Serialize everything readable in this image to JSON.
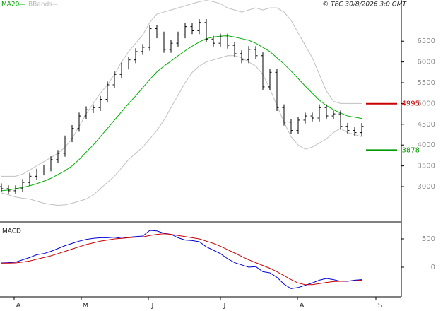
{
  "chart_data": [
    {
      "type": "ohlc",
      "note": "© TEC 30/8/2026 3:0 GMT",
      "xlim": [
        -0.2,
        56.6
      ],
      "ylim": [
        2167,
        7490
      ],
      "yticks": [
        3000,
        3500,
        4000,
        4500,
        5000,
        5500,
        6000,
        6500
      ],
      "open": [
        3000,
        2950,
        2900,
        2950,
        3100,
        3250,
        3350,
        3450,
        3650,
        3800,
        4150,
        4400,
        4700,
        4850,
        4900,
        5100,
        5450,
        5700,
        5900,
        6050,
        6250,
        6350,
        6800,
        6650,
        6300,
        6450,
        6650,
        6850,
        6750,
        6950,
        6550,
        6450,
        6600,
        6400,
        6200,
        6050,
        6300,
        6150,
        5400,
        5750,
        4900,
        4550,
        4350,
        4600,
        4700,
        4650,
        4900,
        4700,
        4750,
        4450,
        4350,
        4300
      ],
      "high": [
        3080,
        3030,
        3030,
        3180,
        3330,
        3430,
        3530,
        3730,
        3880,
        4230,
        4480,
        4780,
        4930,
        4980,
        5180,
        5530,
        5780,
        5980,
        6130,
        6330,
        6430,
        6880,
        6880,
        6730,
        6530,
        6730,
        6930,
        6930,
        7030,
        7030,
        6630,
        6680,
        6680,
        6480,
        6280,
        6380,
        6380,
        6230,
        5830,
        5830,
        4980,
        4630,
        4680,
        4780,
        4780,
        4980,
        4980,
        4830,
        4830,
        4530,
        4430,
        4530
      ],
      "low": [
        2870,
        2820,
        2820,
        2870,
        3020,
        3170,
        3270,
        3370,
        3570,
        3720,
        4070,
        4320,
        4620,
        4770,
        4820,
        5020,
        5370,
        5620,
        5820,
        5970,
        6170,
        6270,
        6570,
        6220,
        6220,
        6370,
        6570,
        6670,
        6670,
        6470,
        6370,
        6370,
        6320,
        6120,
        5970,
        5970,
        6070,
        5320,
        5320,
        4820,
        4470,
        4270,
        4270,
        4520,
        4570,
        4570,
        4620,
        4620,
        4370,
        4270,
        4220,
        4220
      ],
      "close": [
        2950,
        2900,
        2950,
        3100,
        3250,
        3350,
        3450,
        3650,
        3800,
        4150,
        4400,
        4700,
        4850,
        4900,
        5100,
        5450,
        5700,
        5900,
        6050,
        6250,
        6350,
        6800,
        6650,
        6300,
        6450,
        6650,
        6850,
        6750,
        6950,
        6550,
        6450,
        6600,
        6400,
        6200,
        6050,
        6300,
        6150,
        5400,
        5750,
        4900,
        4550,
        4350,
        4600,
        4700,
        4650,
        4900,
        4700,
        4750,
        4450,
        4350,
        4300,
        4450
      ],
      "series": [
        {
          "name": "MA20",
          "color": "#00b000",
          "values": [
            2900,
            2920,
            2950,
            2980,
            3020,
            3070,
            3130,
            3200,
            3290,
            3380,
            3500,
            3650,
            3830,
            4000,
            4200,
            4400,
            4600,
            4800,
            5000,
            5180,
            5380,
            5580,
            5760,
            5900,
            6020,
            6150,
            6270,
            6380,
            6480,
            6560,
            6600,
            6620,
            6630,
            6600,
            6560,
            6520,
            6450,
            6350,
            6250,
            6100,
            5950,
            5780,
            5600,
            5420,
            5250,
            5080,
            4950,
            4850,
            4770,
            4700,
            4670,
            4640
          ]
        },
        {
          "name": "BBands",
          "color": "#c0c0c0",
          "upper": [
            3250,
            3250,
            3250,
            3300,
            3400,
            3500,
            3600,
            3700,
            3800,
            3950,
            4150,
            4450,
            4750,
            5000,
            5250,
            5450,
            5700,
            6000,
            6250,
            6450,
            6650,
            6950,
            7150,
            7200,
            7250,
            7300,
            7350,
            7400,
            7450,
            7480,
            7450,
            7400,
            7300,
            7250,
            7200,
            7250,
            7300,
            7250,
            7300,
            7300,
            7200,
            7000,
            6700,
            6400,
            6100,
            5700,
            5300,
            5050,
            5000,
            5000,
            5000,
            5000
          ],
          "lower": [
            2850,
            2800,
            2750,
            2720,
            2700,
            2650,
            2600,
            2570,
            2550,
            2560,
            2600,
            2650,
            2700,
            2800,
            2950,
            3100,
            3250,
            3450,
            3650,
            3800,
            3950,
            4150,
            4350,
            4600,
            4900,
            5200,
            5500,
            5750,
            5900,
            6000,
            6050,
            6100,
            6150,
            6150,
            6100,
            6000,
            5900,
            5700,
            5350,
            4950,
            4550,
            4200,
            4000,
            3900,
            3950,
            4050,
            4150,
            4300,
            4400,
            4300,
            4250,
            4200
          ]
        }
      ],
      "levels": [
        {
          "value": 4995,
          "color": "#cc0000"
        },
        {
          "value": 3878,
          "color": "#009900"
        }
      ]
    },
    {
      "type": "line",
      "title": "MACD",
      "xlim": [
        -0.2,
        56.6
      ],
      "ylim": [
        -525,
        750
      ],
      "yticks": [
        0,
        500
      ],
      "xticks": [
        {
          "value": 2.4,
          "label": "A"
        },
        {
          "value": 11.9,
          "label": "M"
        },
        {
          "value": 21.4,
          "label": "J"
        },
        {
          "value": 31.6,
          "label": "J"
        },
        {
          "value": 42.5,
          "label": "A"
        },
        {
          "value": 53.6,
          "label": "S"
        }
      ],
      "series": [
        {
          "color": "#0000dd",
          "values": [
            75,
            80,
            90,
            130,
            170,
            220,
            240,
            280,
            330,
            380,
            420,
            460,
            490,
            510,
            520,
            520,
            530,
            510,
            530,
            540,
            550,
            650,
            640,
            600,
            580,
            520,
            480,
            470,
            450,
            360,
            300,
            240,
            150,
            80,
            40,
            0,
            10,
            -80,
            -100,
            -180,
            -300,
            -380,
            -360,
            -320,
            -280,
            -230,
            -200,
            -220,
            -250,
            -250,
            -230,
            -220
          ]
        },
        {
          "color": "#cc0000",
          "values": [
            70,
            72,
            75,
            90,
            110,
            140,
            170,
            200,
            240,
            280,
            320,
            360,
            400,
            430,
            460,
            480,
            500,
            510,
            520,
            530,
            535,
            560,
            580,
            590,
            580,
            560,
            540,
            520,
            500,
            460,
            420,
            370,
            310,
            250,
            190,
            130,
            80,
            30,
            -20,
            -80,
            -150,
            -220,
            -280,
            -310,
            -310,
            -290,
            -270,
            -255,
            -250,
            -245,
            -240,
            -230
          ]
        }
      ]
    }
  ]
}
